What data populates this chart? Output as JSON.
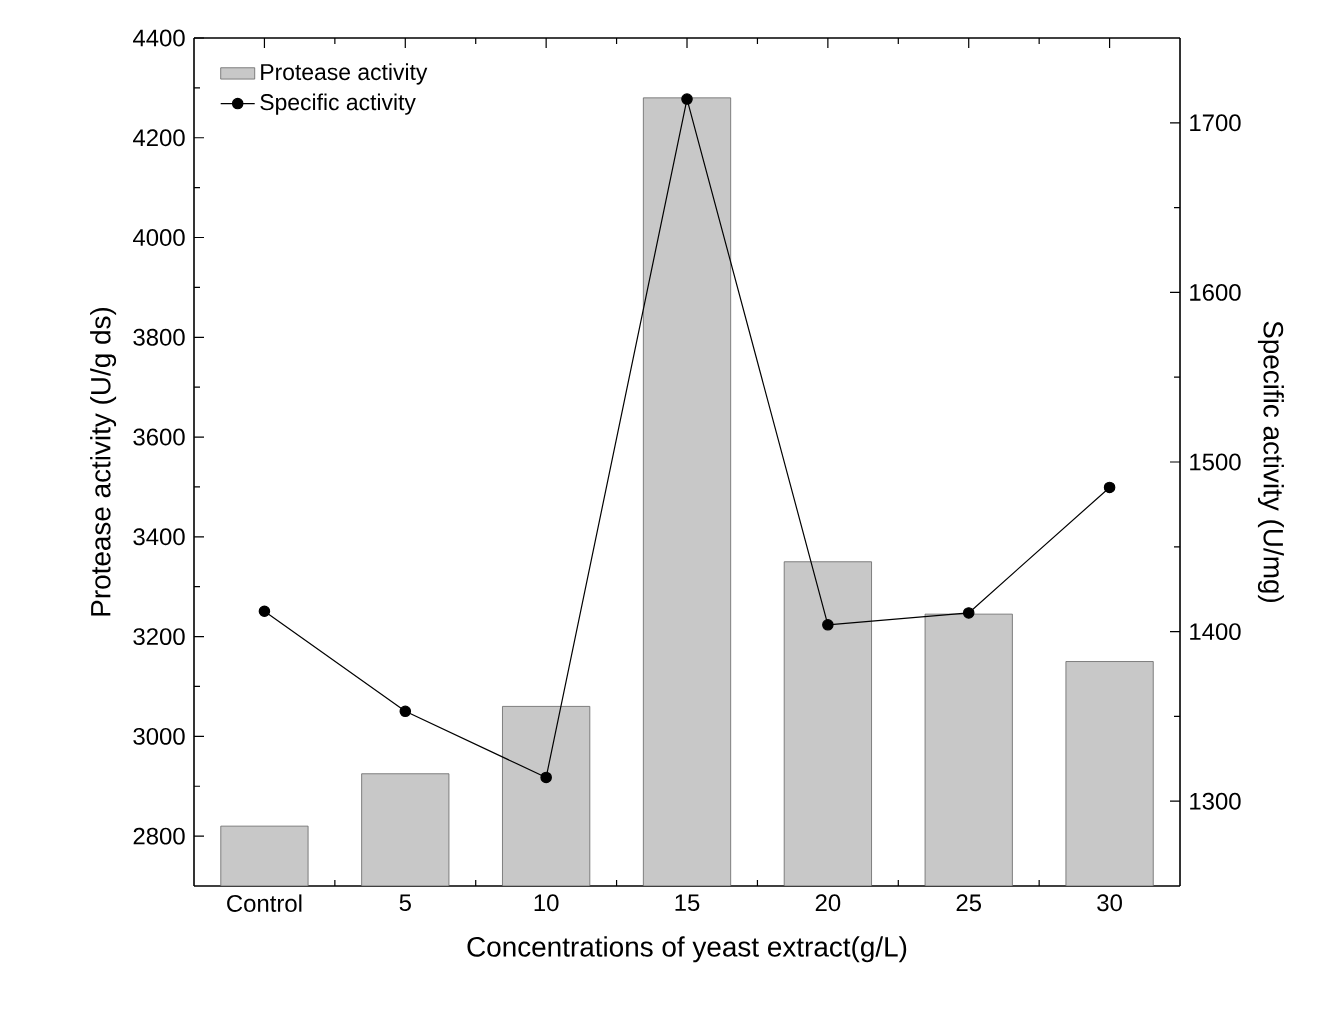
{
  "chart_data": {
    "type": "bar",
    "xlabel": "Concentrations of yeast extract(g/L)",
    "ylabel": "Protease activity (U/g ds)",
    "y2label": "Specific activity (U/mg)",
    "categories": [
      "Control",
      "5",
      "10",
      "15",
      "20",
      "25",
      "30"
    ],
    "series": [
      {
        "name": "Protease activity",
        "color": "#c8c8c8",
        "values": [
          2820,
          2925,
          3060,
          4280,
          3350,
          3245,
          3150
        ]
      },
      {
        "name": "Specific activity",
        "type": "line",
        "axis": "y2",
        "color": "#000000",
        "marker": "circle",
        "values": [
          1412,
          1353,
          1314,
          1714,
          1404,
          1411,
          1485
        ]
      }
    ],
    "ylim": [
      2700,
      4400
    ],
    "yticks": [
      2800,
      3000,
      3200,
      3400,
      3600,
      3800,
      4000,
      4200,
      4400
    ],
    "y2lim": [
      1250,
      1750
    ],
    "y2ticks": [
      1300,
      1400,
      1500,
      1600,
      1700
    ],
    "legend": "top left"
  }
}
